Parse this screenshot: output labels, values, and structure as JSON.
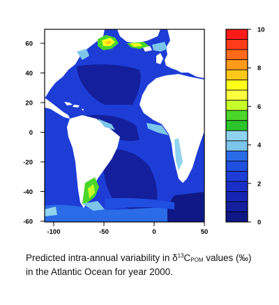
{
  "map": {
    "y_ticks": [
      "60",
      "40",
      "20",
      "0",
      "-20",
      "-40",
      "-60"
    ],
    "x_ticks": [
      "-100",
      "-50",
      "0",
      "50"
    ],
    "ocean_color": "#1d3dd6",
    "land_color": "#ffffff"
  },
  "legend": {
    "tick_labels": [
      "10",
      "8",
      "6",
      "4",
      "2",
      "0"
    ],
    "bins": [
      {
        "value": 9.5,
        "color": "#ff1a1a"
      },
      {
        "value": 9.0,
        "color": "#ff3c1a"
      },
      {
        "value": 8.5,
        "color": "#ff6a1a"
      },
      {
        "value": 8.0,
        "color": "#ff9a1a"
      },
      {
        "value": 7.5,
        "color": "#ffc81a"
      },
      {
        "value": 7.0,
        "color": "#ffff1a"
      },
      {
        "value": 6.5,
        "color": "#ffff40"
      },
      {
        "value": 6.0,
        "color": "#c8ff2a"
      },
      {
        "value": 5.5,
        "color": "#4bd62a"
      },
      {
        "value": 5.0,
        "color": "#2bc42b"
      },
      {
        "value": 4.5,
        "color": "#8fd3ef"
      },
      {
        "value": 4.0,
        "color": "#7cc5eb"
      },
      {
        "value": 3.5,
        "color": "#2a6be8"
      },
      {
        "value": 3.0,
        "color": "#1f4ee0"
      },
      {
        "value": 2.5,
        "color": "#1d3dd6"
      },
      {
        "value": 2.0,
        "color": "#1a2fc8"
      },
      {
        "value": 1.5,
        "color": "#1626b2"
      },
      {
        "value": 1.0,
        "color": "#131f9c"
      },
      {
        "value": 0.5,
        "color": "#0f1886"
      }
    ]
  },
  "caption": {
    "line1": "Predicted intra-annual variability in δ",
    "sup": "13",
    "c": "C",
    "sub": "POM",
    "line2": "values (‰) in the Atlantic Ocean for year 2000."
  }
}
